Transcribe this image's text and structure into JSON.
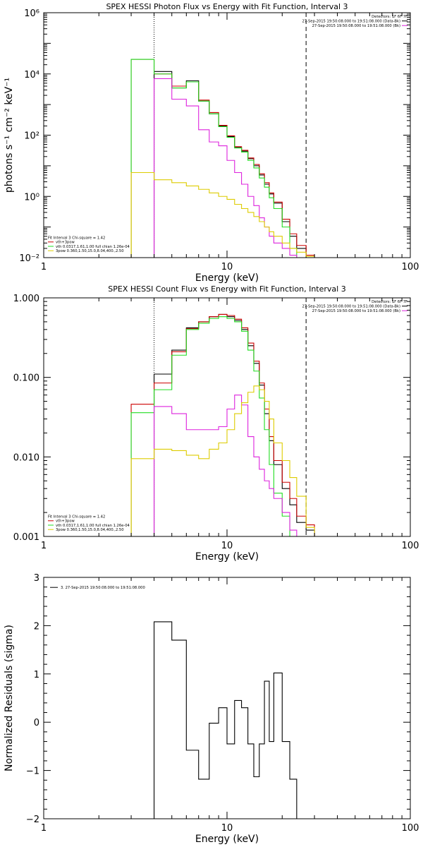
{
  "colors": {
    "black": "#000000",
    "red": "#cc0000",
    "green": "#22dd22",
    "magenta": "#dd22dd",
    "yellow": "#ddcc00"
  },
  "chart_data": [
    {
      "type": "line",
      "title": "SPEX HESSI Photon Flux vs Energy with Fit Function, Interval 3",
      "xlabel": "Energy (keV)",
      "ylabel": "photons s⁻¹ cm⁻² keV⁻¹",
      "xscale": "log",
      "yscale": "log",
      "xlim": [
        1,
        100
      ],
      "ylim": [
        0.01,
        1000000
      ],
      "x_ticks": [
        {
          "v": 1,
          "t": "1"
        },
        {
          "v": 10,
          "t": "10"
        },
        {
          "v": 100,
          "t": "100"
        }
      ],
      "y_ticks": [
        {
          "v": 0.01,
          "t": "10⁻²"
        },
        {
          "v": 1,
          "t": "10⁰"
        },
        {
          "v": 100,
          "t": "10²"
        },
        {
          "v": 10000,
          "t": "10⁴"
        },
        {
          "v": 1000000,
          "t": "10⁶"
        }
      ],
      "vlines": [
        {
          "x": 4.0,
          "style": "dotted"
        },
        {
          "x": 27.0,
          "style": "dashed"
        }
      ],
      "legend_top": {
        "position": "top-right",
        "lines": [
          {
            "text": "Detectors: 1F 6F 7F",
            "color": ""
          },
          {
            "text": "27-Sep-2015 19:50:08.000 to 19:51:08.000 (Data-Bk)",
            "color": "#000000"
          },
          {
            "text": "27-Sep-2015 19:50:08.000 to 19:51:08.000 (Bk)",
            "color": "#dd22dd"
          }
        ]
      },
      "legend_bottom": {
        "position": "bottom-left",
        "lines": [
          {
            "text": "Fit Interval 3   Chi-square = 1.42",
            "color": ""
          },
          {
            "text": "vth+3pow",
            "color": "#cc0000"
          },
          {
            "text": "vth 0.0317,1.61,1.00  full chian 1.26e-04",
            "color": "#22dd22"
          },
          {
            "text": "3pow 0.360,1.50,15.0,8.04,400.,2.50",
            "color": "#ddcc00"
          }
        ]
      },
      "series": [
        {
          "color": "#000000",
          "edges": [
            4.0,
            5.0,
            6.0,
            7.0,
            8.0,
            9.0,
            10.0,
            11.0,
            12.0,
            13.0,
            14.0,
            15.0,
            16.0,
            17.0,
            18.0,
            20.0,
            22.0,
            24.0,
            27.0,
            30.0
          ],
          "values": [
            12000,
            3500,
            6000,
            1300,
            500,
            200,
            90,
            40,
            30,
            17,
            10,
            5,
            2.5,
            1.2,
            0.6,
            0.15,
            0.05,
            0.02,
            0.008
          ]
        },
        {
          "color": "#cc0000",
          "edges": [
            3.0,
            4.0,
            5.0,
            6.0,
            7.0,
            8.0,
            9.0,
            10.0,
            11.0,
            12.0,
            13.0,
            14.0,
            15.0,
            16.0,
            17.0,
            18.0,
            20.0,
            22.0,
            24.0,
            27.0,
            30.0
          ],
          "values": [
            30000,
            10000,
            4000,
            5500,
            1400,
            550,
            210,
            95,
            42,
            32,
            18,
            11,
            5.5,
            2.8,
            1.3,
            0.65,
            0.18,
            0.06,
            0.025,
            0.012
          ]
        },
        {
          "color": "#22dd22",
          "edges": [
            3.0,
            4.0,
            5.0,
            6.0,
            7.0,
            8.0,
            9.0,
            10.0,
            11.0,
            12.0,
            13.0,
            14.0,
            15.0,
            16.0,
            17.0,
            18.0,
            20.0,
            22.0,
            24.0
          ],
          "values": [
            30000,
            10000,
            3500,
            5500,
            1300,
            500,
            190,
            85,
            38,
            28,
            15,
            8.5,
            4,
            2,
            0.9,
            0.4,
            0.1,
            0.02
          ]
        },
        {
          "color": "#dd22dd",
          "edges": [
            4.0,
            5.0,
            6.0,
            7.0,
            8.0,
            9.0,
            10.0,
            11.0,
            12.0,
            13.0,
            14.0,
            15.0,
            16.0,
            17.0,
            18.0,
            20.0,
            22.0,
            24.0
          ],
          "values": [
            7000,
            1500,
            900,
            150,
            60,
            45,
            15,
            6,
            2.5,
            1,
            0.5,
            0.2,
            0.1,
            0.05,
            0.03,
            0.02,
            0.012
          ]
        },
        {
          "color": "#ddcc00",
          "edges": [
            3.0,
            4.0,
            5.0,
            6.0,
            7.0,
            8.0,
            9.0,
            10.0,
            11.0,
            12.0,
            13.0,
            14.0,
            15.0,
            16.0,
            17.0,
            18.0,
            20.0,
            22.0,
            24.0,
            27.0,
            30.0
          ],
          "values": [
            6,
            3.5,
            2.8,
            2.2,
            1.7,
            1.3,
            1.0,
            0.8,
            0.55,
            0.4,
            0.3,
            0.22,
            0.15,
            0.1,
            0.07,
            0.05,
            0.03,
            0.02,
            0.015,
            0.011
          ]
        }
      ]
    },
    {
      "type": "line",
      "title": "SPEX HESSI Count Flux vs Energy with Fit Function, Interval 3",
      "xlabel": "Energy (keV)",
      "ylabel": "",
      "xscale": "log",
      "yscale": "log",
      "xlim": [
        1,
        100
      ],
      "ylim": [
        0.001,
        1.0
      ],
      "x_ticks": [
        {
          "v": 1,
          "t": "1"
        },
        {
          "v": 10,
          "t": "10"
        },
        {
          "v": 100,
          "t": "100"
        }
      ],
      "y_ticks": [
        {
          "v": 0.001,
          "t": "0.001"
        },
        {
          "v": 0.01,
          "t": "0.010"
        },
        {
          "v": 0.1,
          "t": "0.100"
        },
        {
          "v": 1.0,
          "t": "1.000"
        }
      ],
      "vlines": [
        {
          "x": 4.0,
          "style": "dotted"
        },
        {
          "x": 27.0,
          "style": "dashed"
        }
      ],
      "legend_top": {
        "position": "top-right",
        "lines": [
          {
            "text": "Detectors: 1F 6F 7F",
            "color": ""
          },
          {
            "text": "27-Sep-2015 19:50:08.000 to 19:51:08.000 (Data-Bk)",
            "color": "#000000"
          },
          {
            "text": "27-Sep-2015 19:50:08.000 to 19:51:08.000 (Bk)",
            "color": "#dd22dd"
          }
        ]
      },
      "legend_bottom": {
        "position": "bottom-left",
        "lines": [
          {
            "text": "Fit Interval 3   Chi-square = 1.42",
            "color": ""
          },
          {
            "text": "vth+3pow",
            "color": "#cc0000"
          },
          {
            "text": "vth 0.0317,1.61,1.00  full chian 1.26e-04",
            "color": "#22dd22"
          },
          {
            "text": "3pow 0.360,1.50,15.0,8.04,400.,2.50",
            "color": "#ddcc00"
          }
        ]
      },
      "series": [
        {
          "color": "#000000",
          "edges": [
            4.0,
            5.0,
            6.0,
            7.0,
            8.0,
            9.0,
            10.0,
            11.0,
            12.0,
            13.0,
            14.0,
            15.0,
            16.0,
            17.0,
            18.0,
            20.0,
            22.0,
            24.0,
            27.0,
            30.0
          ],
          "values": [
            0.11,
            0.22,
            0.42,
            0.5,
            0.58,
            0.62,
            0.58,
            0.52,
            0.4,
            0.25,
            0.15,
            0.08,
            0.035,
            0.016,
            0.008,
            0.004,
            0.0025,
            0.0015,
            0.0012
          ]
        },
        {
          "color": "#cc0000",
          "edges": [
            3.0,
            4.0,
            5.0,
            6.0,
            7.0,
            8.0,
            9.0,
            10.0,
            11.0,
            12.0,
            13.0,
            14.0,
            15.0,
            16.0,
            17.0,
            18.0,
            20.0,
            22.0,
            24.0,
            27.0,
            30.0
          ],
          "values": [
            0.046,
            0.085,
            0.21,
            0.41,
            0.5,
            0.58,
            0.62,
            0.6,
            0.54,
            0.42,
            0.27,
            0.16,
            0.085,
            0.04,
            0.018,
            0.009,
            0.0048,
            0.003,
            0.0018,
            0.0014
          ]
        },
        {
          "color": "#22dd22",
          "edges": [
            3.0,
            4.0,
            5.0,
            6.0,
            7.0,
            8.0,
            9.0,
            10.0,
            11.0,
            12.0,
            13.0,
            14.0,
            15.0,
            16.0,
            17.0,
            18.0,
            20.0,
            22.0,
            24.0
          ],
          "values": [
            0.036,
            0.07,
            0.19,
            0.4,
            0.48,
            0.55,
            0.58,
            0.55,
            0.5,
            0.38,
            0.22,
            0.12,
            0.055,
            0.022,
            0.008,
            0.0035,
            0.0018,
            0.001
          ]
        },
        {
          "color": "#dd22dd",
          "edges": [
            4.0,
            5.0,
            6.0,
            7.0,
            8.0,
            9.0,
            10.0,
            11.0,
            12.0,
            13.0,
            14.0,
            15.0,
            16.0,
            17.0,
            18.0,
            20.0,
            22.0,
            24.0
          ],
          "values": [
            0.043,
            0.035,
            0.022,
            0.022,
            0.022,
            0.024,
            0.04,
            0.06,
            0.045,
            0.018,
            0.01,
            0.007,
            0.005,
            0.004,
            0.003,
            0.002,
            0.0012
          ]
        },
        {
          "color": "#ddcc00",
          "edges": [
            3.0,
            4.0,
            5.0,
            6.0,
            7.0,
            8.0,
            9.0,
            10.0,
            11.0,
            12.0,
            13.0,
            14.0,
            15.0,
            16.0,
            17.0,
            18.0,
            20.0,
            22.0,
            24.0,
            27.0,
            30.0
          ],
          "values": [
            0.0095,
            0.0125,
            0.012,
            0.0105,
            0.0095,
            0.0125,
            0.015,
            0.022,
            0.035,
            0.048,
            0.065,
            0.078,
            0.07,
            0.05,
            0.03,
            0.015,
            0.009,
            0.0055,
            0.0032,
            0.0013
          ]
        }
      ]
    },
    {
      "type": "line",
      "title": "",
      "xlabel": "Energy (keV)",
      "ylabel": "Normalized Residuals (sigma)",
      "xscale": "log",
      "yscale": "linear",
      "xlim": [
        1,
        100
      ],
      "ylim": [
        -2,
        3
      ],
      "x_ticks": [
        {
          "v": 1,
          "t": "1"
        },
        {
          "v": 10,
          "t": "10"
        },
        {
          "v": 100,
          "t": "100"
        }
      ],
      "y_ticks": [
        {
          "v": -2,
          "t": "−2"
        },
        {
          "v": -1,
          "t": "−1"
        },
        {
          "v": 0,
          "t": "0"
        },
        {
          "v": 1,
          "t": "1"
        },
        {
          "v": 2,
          "t": "2"
        },
        {
          "v": 3,
          "t": "3"
        }
      ],
      "vlines": [],
      "legend_top": {
        "position": "top-left",
        "lines": [
          {
            "text": "3. 27-Sep-2015 19:50:08.000 to 19:51:08.000",
            "color": "#000000"
          }
        ]
      },
      "legend_bottom": null,
      "series": [
        {
          "color": "#000000",
          "edges": [
            4.0,
            5.0,
            6.0,
            7.0,
            8.0,
            9.0,
            10.0,
            11.0,
            12.0,
            13.0,
            14.0,
            15.0,
            16.0,
            17.0,
            18.0,
            20.0,
            22.0,
            24.0,
            27.0
          ],
          "values": [
            2.08,
            1.7,
            -0.58,
            -1.18,
            -0.02,
            0.3,
            -0.45,
            0.45,
            0.3,
            -0.45,
            -1.13,
            -0.45,
            0.85,
            -0.4,
            1.02,
            -0.4,
            -1.18,
            -2.0
          ]
        }
      ]
    }
  ]
}
